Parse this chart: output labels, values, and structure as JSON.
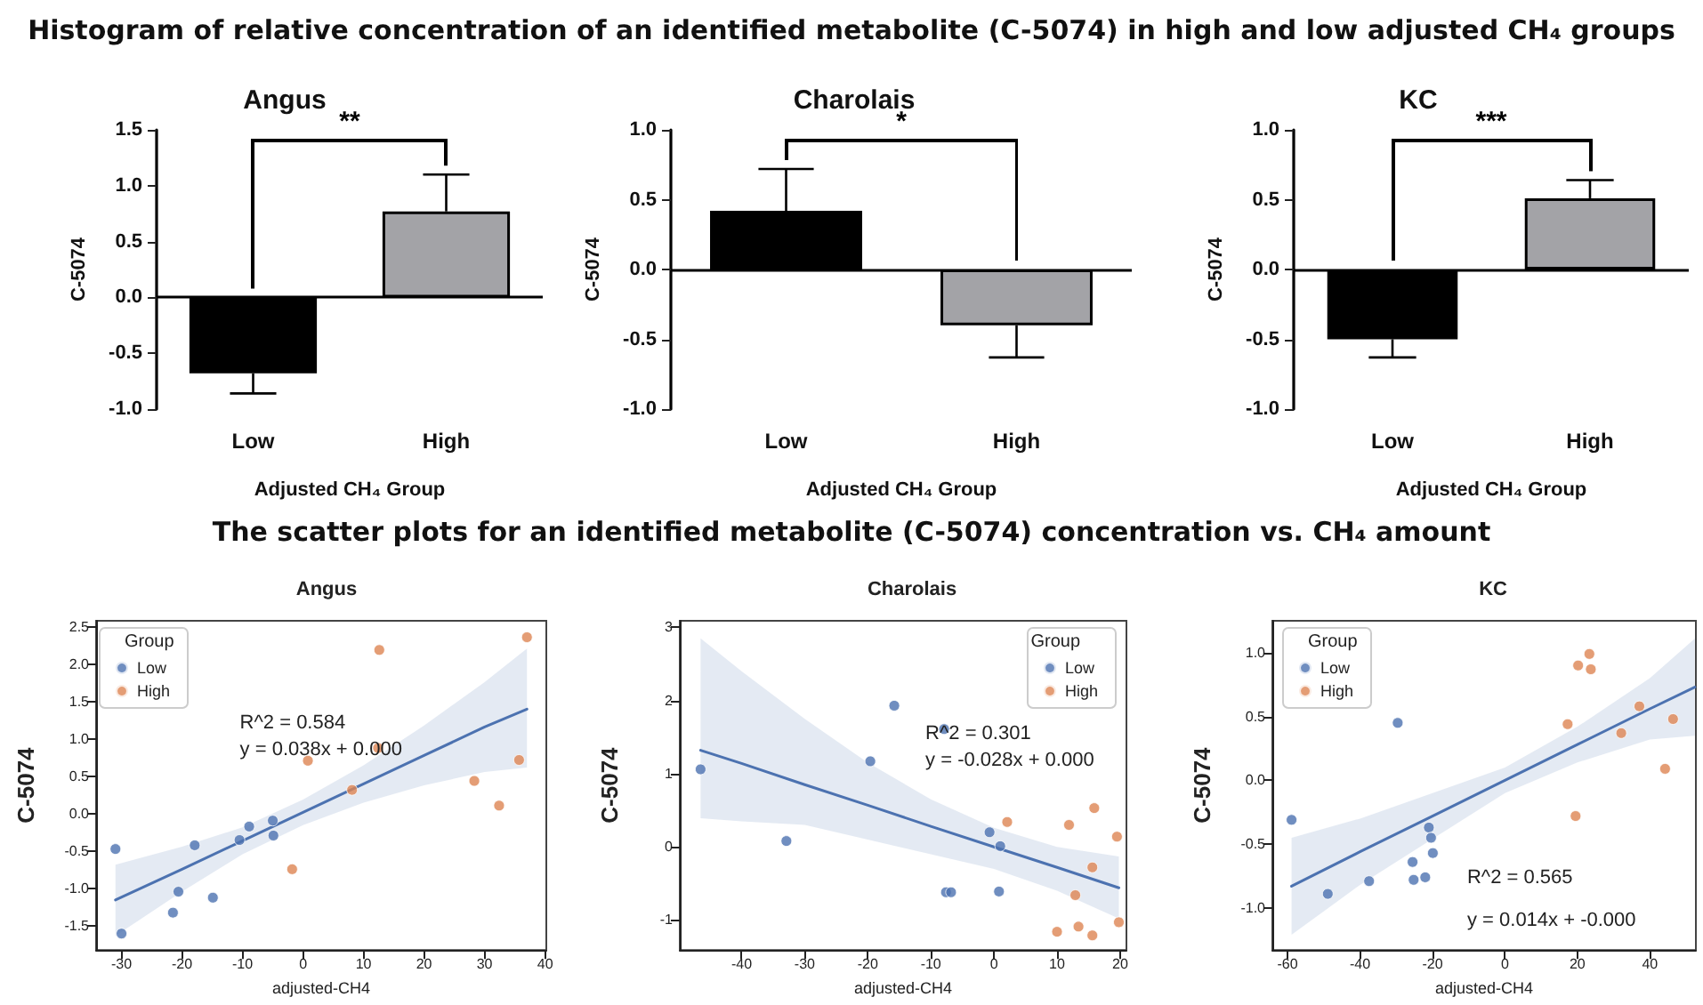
{
  "chart_data": [
    {
      "type": "other",
      "title": "Histogram of relative concentration of an identified metabolite (C-5074) in high and low adjusted CH₄ groups"
    },
    {
      "type": "bar",
      "title": "Angus",
      "categories": [
        "Low",
        "High"
      ],
      "values": [
        -0.68,
        0.77
      ],
      "colors": [
        "#000000",
        "#a3a3a7"
      ],
      "errors": [
        [
          -0.86,
          -0.68
        ],
        [
          0.77,
          1.1
        ]
      ],
      "xlabel": "Adjusted CH₄ Group",
      "ylabel": "C-5074",
      "ylim": [
        -1,
        1.5
      ],
      "yticks": [
        {
          "value": -1,
          "label": "-1.0"
        },
        -0.5,
        {
          "value": 0,
          "label": "0.0"
        },
        0.5,
        {
          "value": 1,
          "label": "1.0"
        },
        1.5
      ],
      "ref_lines": [
        {
          "axis": "y",
          "value": 0
        }
      ],
      "annotations": [
        "**"
      ]
    },
    {
      "type": "bar",
      "title": "Charolais",
      "categories": [
        "Low",
        "High"
      ],
      "values": [
        0.42,
        -0.4
      ],
      "colors": [
        "#000000",
        "#a3a3a7"
      ],
      "errors": [
        [
          0.42,
          0.72
        ],
        [
          -0.63,
          -0.4
        ]
      ],
      "xlabel": "Adjusted CH₄ Group",
      "ylabel": "C-5074",
      "ylim": [
        -1,
        1
      ],
      "yticks": [
        {
          "value": -1,
          "label": "-1.0"
        },
        -0.5,
        {
          "value": 0,
          "label": "0.0"
        },
        0.5,
        {
          "value": 1,
          "label": "1.0"
        }
      ],
      "ref_lines": [
        {
          "axis": "y",
          "value": 0
        }
      ],
      "annotations": [
        "*"
      ]
    },
    {
      "type": "bar",
      "title": "KC",
      "categories": [
        "Low",
        "High"
      ],
      "values": [
        -0.5,
        0.51
      ],
      "colors": [
        "#000000",
        "#a3a3a7"
      ],
      "errors": [
        [
          -0.63,
          -0.5
        ],
        [
          0.51,
          0.64
        ]
      ],
      "xlabel": "Adjusted CH₄ Group",
      "ylabel": "C-5074",
      "ylim": [
        -1,
        1
      ],
      "yticks": [
        {
          "value": -1,
          "label": "-1.0"
        },
        -0.5,
        {
          "value": 0,
          "label": "0.0"
        },
        0.5,
        {
          "value": 1,
          "label": "1.0"
        }
      ],
      "ref_lines": [
        {
          "axis": "y",
          "value": 0
        }
      ],
      "annotations": [
        "***"
      ]
    },
    {
      "type": "other",
      "title": "The scatter plots for an identified metabolite (C-5074) concentration vs. CH₄ amount"
    },
    {
      "type": "scatter",
      "title": "Angus",
      "xlabel": "adjusted-CH4",
      "ylabel": "C-5074",
      "legend": "top left",
      "legend_title": "Group",
      "marker": "circle",
      "xlim": [
        -34.2,
        40.2
      ],
      "xticks": [
        -30,
        -20,
        -10,
        0,
        10,
        20,
        30,
        40
      ],
      "ylim": [
        -1.82,
        2.58
      ],
      "yticks": [
        -1.5,
        {
          "value": -1,
          "label": "-1.0"
        },
        -0.5,
        {
          "value": 0,
          "label": "0.0"
        },
        0.5,
        {
          "value": 1,
          "label": "1.0"
        },
        1.5,
        {
          "value": 2,
          "label": "2.0"
        },
        2.5
      ],
      "annotations": [
        "R^2 = 0.584",
        "y = 0.038x + 0.000"
      ],
      "series": [
        {
          "name": "Low",
          "color": "#4c72b0",
          "x": [
            -31.0,
            -30.0,
            -21.5,
            -20.6,
            -17.9,
            -14.9,
            -10.5,
            -8.9,
            -5.0,
            -4.9
          ],
          "values": [
            -0.47,
            -1.6,
            -1.32,
            -1.04,
            -0.42,
            -1.12,
            -0.35,
            -0.17,
            -0.09,
            -0.29
          ]
        },
        {
          "name": "High",
          "color": "#dd8452",
          "x": [
            -1.8,
            0.8,
            8.1,
            12.6,
            12.4,
            28.3,
            32.4,
            35.7,
            37.0
          ],
          "values": [
            -0.74,
            0.71,
            0.32,
            2.19,
            0.88,
            0.44,
            0.11,
            0.72,
            2.36
          ]
        },
        {
          "type": "line",
          "color": "#4c72b0",
          "marker": "none",
          "x": [
            -31,
            -20,
            -10,
            0,
            10,
            20,
            30,
            37
          ],
          "values": [
            -1.15,
            -0.74,
            -0.36,
            0.02,
            0.4,
            0.78,
            1.16,
            1.4
          ],
          "lower": [
            -1.63,
            -1.04,
            -0.54,
            -0.15,
            0.15,
            0.38,
            0.56,
            0.62
          ],
          "upper": [
            -0.68,
            -0.44,
            -0.18,
            0.19,
            0.65,
            1.18,
            1.76,
            2.21
          ]
        }
      ]
    },
    {
      "type": "scatter",
      "title": "Charolais",
      "xlabel": "adjusted-CH4",
      "ylabel": "C-5074",
      "legend": "top right",
      "legend_title": "Group",
      "marker": "circle",
      "xlim": [
        -49.8,
        21
      ],
      "xticks": [
        -40,
        -30,
        -20,
        -10,
        0,
        10,
        20
      ],
      "ylim": [
        -1.41,
        3.09
      ],
      "yticks": [
        -1,
        0,
        1,
        2,
        3
      ],
      "annotations": [
        "R^2 = 0.301",
        "y = -0.028x + 0.000"
      ],
      "series": [
        {
          "name": "Low",
          "color": "#4c72b0",
          "x": [
            -46.5,
            -32.9,
            -19.6,
            -15.8,
            -7.9,
            -7.6,
            -6.8,
            -0.7,
            1.0,
            0.8
          ],
          "values": [
            1.06,
            0.08,
            1.17,
            1.93,
            1.61,
            -0.62,
            -0.62,
            0.2,
            0.01,
            -0.61
          ]
        },
        {
          "name": "High",
          "color": "#dd8452",
          "x": [
            2.1,
            10.0,
            11.9,
            12.9,
            13.4,
            15.6,
            15.9,
            15.6,
            19.5,
            19.8
          ],
          "values": [
            0.34,
            -1.16,
            0.3,
            -0.66,
            -1.09,
            -0.28,
            0.53,
            -1.21,
            0.14,
            -1.03
          ]
        },
        {
          "type": "line",
          "color": "#4c72b0",
          "marker": "none",
          "x": [
            -46.5,
            -40,
            -30,
            -20,
            -10,
            0,
            10,
            19.8
          ],
          "values": [
            1.32,
            1.14,
            0.85,
            0.57,
            0.28,
            0.0,
            -0.28,
            -0.56
          ],
          "lower": [
            0.39,
            0.35,
            0.3,
            0.1,
            -0.1,
            -0.3,
            -0.6,
            -0.98
          ],
          "upper": [
            2.85,
            2.4,
            1.75,
            1.15,
            0.65,
            0.26,
            0.0,
            -0.13
          ]
        }
      ]
    },
    {
      "type": "scatter",
      "title": "KC",
      "xlabel": "adjusted-CH4",
      "ylabel": "C-5074",
      "legend": "top left",
      "legend_title": "Group",
      "marker": "circle",
      "xlim": [
        -64.2,
        52.7
      ],
      "xticks": [
        -60,
        -40,
        -20,
        0,
        20,
        40
      ],
      "ylim": [
        -1.33,
        1.25
      ],
      "yticks": [
        {
          "value": -1,
          "label": "-1.0"
        },
        -0.5,
        {
          "value": 0,
          "label": "0.0"
        },
        0.5,
        {
          "value": 1,
          "label": "1.0"
        }
      ],
      "annotations": [
        "R^2 = 0.565",
        "y = 0.014x + -0.000"
      ],
      "series": [
        {
          "name": "Low",
          "color": "#4c72b0",
          "x": [
            -58.9,
            -48.9,
            -37.5,
            -29.6,
            -25.5,
            -25.2,
            -22.0,
            -21.0,
            -20.4,
            -19.9
          ],
          "values": [
            -0.31,
            -0.89,
            -0.79,
            0.45,
            -0.64,
            -0.78,
            -0.76,
            -0.37,
            -0.45,
            -0.57
          ]
        },
        {
          "name": "High",
          "color": "#dd8452",
          "x": [
            17.3,
            19.5,
            20.2,
            23.3,
            23.7,
            32.1,
            37.1,
            44.2,
            46.4
          ],
          "values": [
            0.44,
            -0.28,
            0.9,
            0.99,
            0.87,
            0.37,
            0.58,
            0.09,
            0.48
          ]
        },
        {
          "type": "line",
          "color": "#4c72b0",
          "marker": "none",
          "x": [
            -58.9,
            -40,
            -20,
            0,
            20,
            40,
            52.4
          ],
          "values": [
            -0.83,
            -0.56,
            -0.28,
            0.0,
            0.28,
            0.56,
            0.73
          ],
          "lower": [
            -1.21,
            -0.82,
            -0.46,
            -0.1,
            0.14,
            0.32,
            0.35
          ],
          "upper": [
            -0.45,
            -0.3,
            -0.1,
            0.1,
            0.42,
            0.8,
            1.11
          ]
        }
      ]
    }
  ]
}
